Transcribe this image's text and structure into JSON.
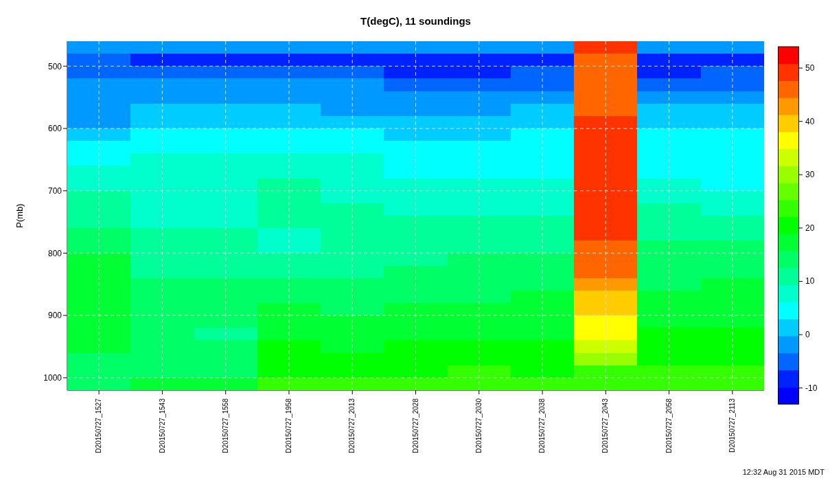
{
  "chart_data": {
    "type": "heatmap",
    "title": "T(degC), 11 soundings",
    "ylabel": "P(mb)",
    "annotations": [
      "12:32 Aug 31 2015 MDT"
    ],
    "categories": [
      "D20150727_1527",
      "D20150727_1543",
      "D20150727_1558",
      "D20150727_1958",
      "D20150727_2013",
      "D20150727_2028",
      "D20150727_2030",
      "D20150727_2038",
      "D20150727_2043",
      "D20150727_2058",
      "D20150727_2113"
    ],
    "ylim": [
      1020,
      460
    ],
    "yticks": [
      500,
      600,
      700,
      800,
      900,
      1000
    ],
    "grid": true,
    "clim": [
      -13,
      54
    ],
    "cticks": [
      -10,
      0,
      10,
      20,
      30,
      40,
      50
    ],
    "cells": [
      [
        -2,
        -2,
        -2,
        -2,
        -2,
        -2,
        -2,
        -2,
        49,
        -2,
        -2
      ],
      [
        -5,
        -8,
        -8,
        -8,
        -8,
        -8,
        -8,
        -8,
        46,
        -8,
        -8
      ],
      [
        -5,
        -5,
        -5,
        -5,
        -5,
        -8,
        -8,
        -5,
        46,
        -8,
        -5
      ],
      [
        -2,
        -2,
        -2,
        -2,
        -2,
        -5,
        -5,
        -5,
        46,
        -5,
        -5
      ],
      [
        -2,
        -2,
        -2,
        -2,
        -2,
        -2,
        -2,
        -2,
        46,
        -2,
        -2
      ],
      [
        -2,
        1,
        1,
        1,
        -2,
        -2,
        -2,
        1,
        46,
        1,
        1
      ],
      [
        -2,
        1,
        1,
        1,
        1,
        1,
        1,
        1,
        49,
        1,
        1
      ],
      [
        1,
        5,
        5,
        5,
        5,
        1,
        1,
        5,
        49,
        5,
        5
      ],
      [
        5,
        5,
        5,
        5,
        5,
        5,
        5,
        5,
        49,
        5,
        5
      ],
      [
        5,
        8,
        8,
        8,
        8,
        5,
        5,
        5,
        49,
        5,
        5
      ],
      [
        8,
        8,
        8,
        8,
        8,
        5,
        5,
        5,
        49,
        5,
        5
      ],
      [
        8,
        8,
        8,
        11,
        8,
        8,
        8,
        8,
        49,
        8,
        5
      ],
      [
        11,
        8,
        8,
        11,
        8,
        8,
        8,
        8,
        49,
        8,
        8
      ],
      [
        11,
        8,
        8,
        11,
        11,
        8,
        8,
        8,
        49,
        11,
        8
      ],
      [
        11,
        8,
        8,
        11,
        11,
        11,
        11,
        11,
        49,
        11,
        11
      ],
      [
        14,
        11,
        11,
        8,
        11,
        11,
        11,
        11,
        49,
        11,
        11
      ],
      [
        14,
        11,
        11,
        8,
        11,
        11,
        11,
        11,
        46,
        14,
        14
      ],
      [
        17,
        11,
        11,
        11,
        11,
        11,
        14,
        14,
        46,
        14,
        14
      ],
      [
        17,
        11,
        11,
        11,
        11,
        14,
        14,
        14,
        46,
        14,
        14
      ],
      [
        17,
        14,
        14,
        14,
        14,
        14,
        14,
        14,
        43,
        14,
        17
      ],
      [
        17,
        14,
        14,
        14,
        14,
        14,
        14,
        17,
        40,
        17,
        17
      ],
      [
        17,
        14,
        14,
        17,
        14,
        17,
        17,
        17,
        40,
        17,
        17
      ],
      [
        17,
        14,
        14,
        17,
        17,
        17,
        17,
        17,
        36,
        17,
        17
      ],
      [
        17,
        14,
        11,
        17,
        17,
        17,
        17,
        17,
        36,
        21,
        21
      ],
      [
        17,
        14,
        14,
        21,
        17,
        21,
        21,
        21,
        33,
        21,
        21
      ],
      [
        14,
        14,
        14,
        21,
        21,
        21,
        21,
        21,
        30,
        21,
        21
      ],
      [
        14,
        14,
        14,
        21,
        21,
        21,
        24,
        21,
        24,
        24,
        24
      ],
      [
        14,
        17,
        17,
        24,
        24,
        24,
        24,
        24,
        24,
        24,
        24
      ]
    ]
  }
}
